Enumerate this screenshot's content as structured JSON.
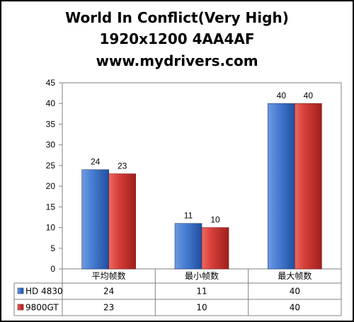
{
  "title_lines": [
    "World In Conflict(Very High)",
    "1920x1200 4AA4AF",
    "www.mydrivers.com"
  ],
  "chart_data": {
    "type": "bar",
    "title": "World In Conflict(Very High) 1920x1200 4AA4AF www.mydrivers.com",
    "categories": [
      "平均帧数",
      "最小帧数",
      "最大帧数"
    ],
    "series": [
      {
        "name": "HD 4830",
        "values": [
          24,
          11,
          40
        ],
        "color": "#3a6fc4"
      },
      {
        "name": "9800GT",
        "values": [
          23,
          10,
          40
        ],
        "color": "#d23a35"
      }
    ],
    "ylim": [
      0,
      45
    ],
    "yticks": [
      0,
      5,
      10,
      15,
      20,
      25,
      30,
      35,
      40,
      45
    ],
    "grid": false,
    "legend": "data-table"
  }
}
